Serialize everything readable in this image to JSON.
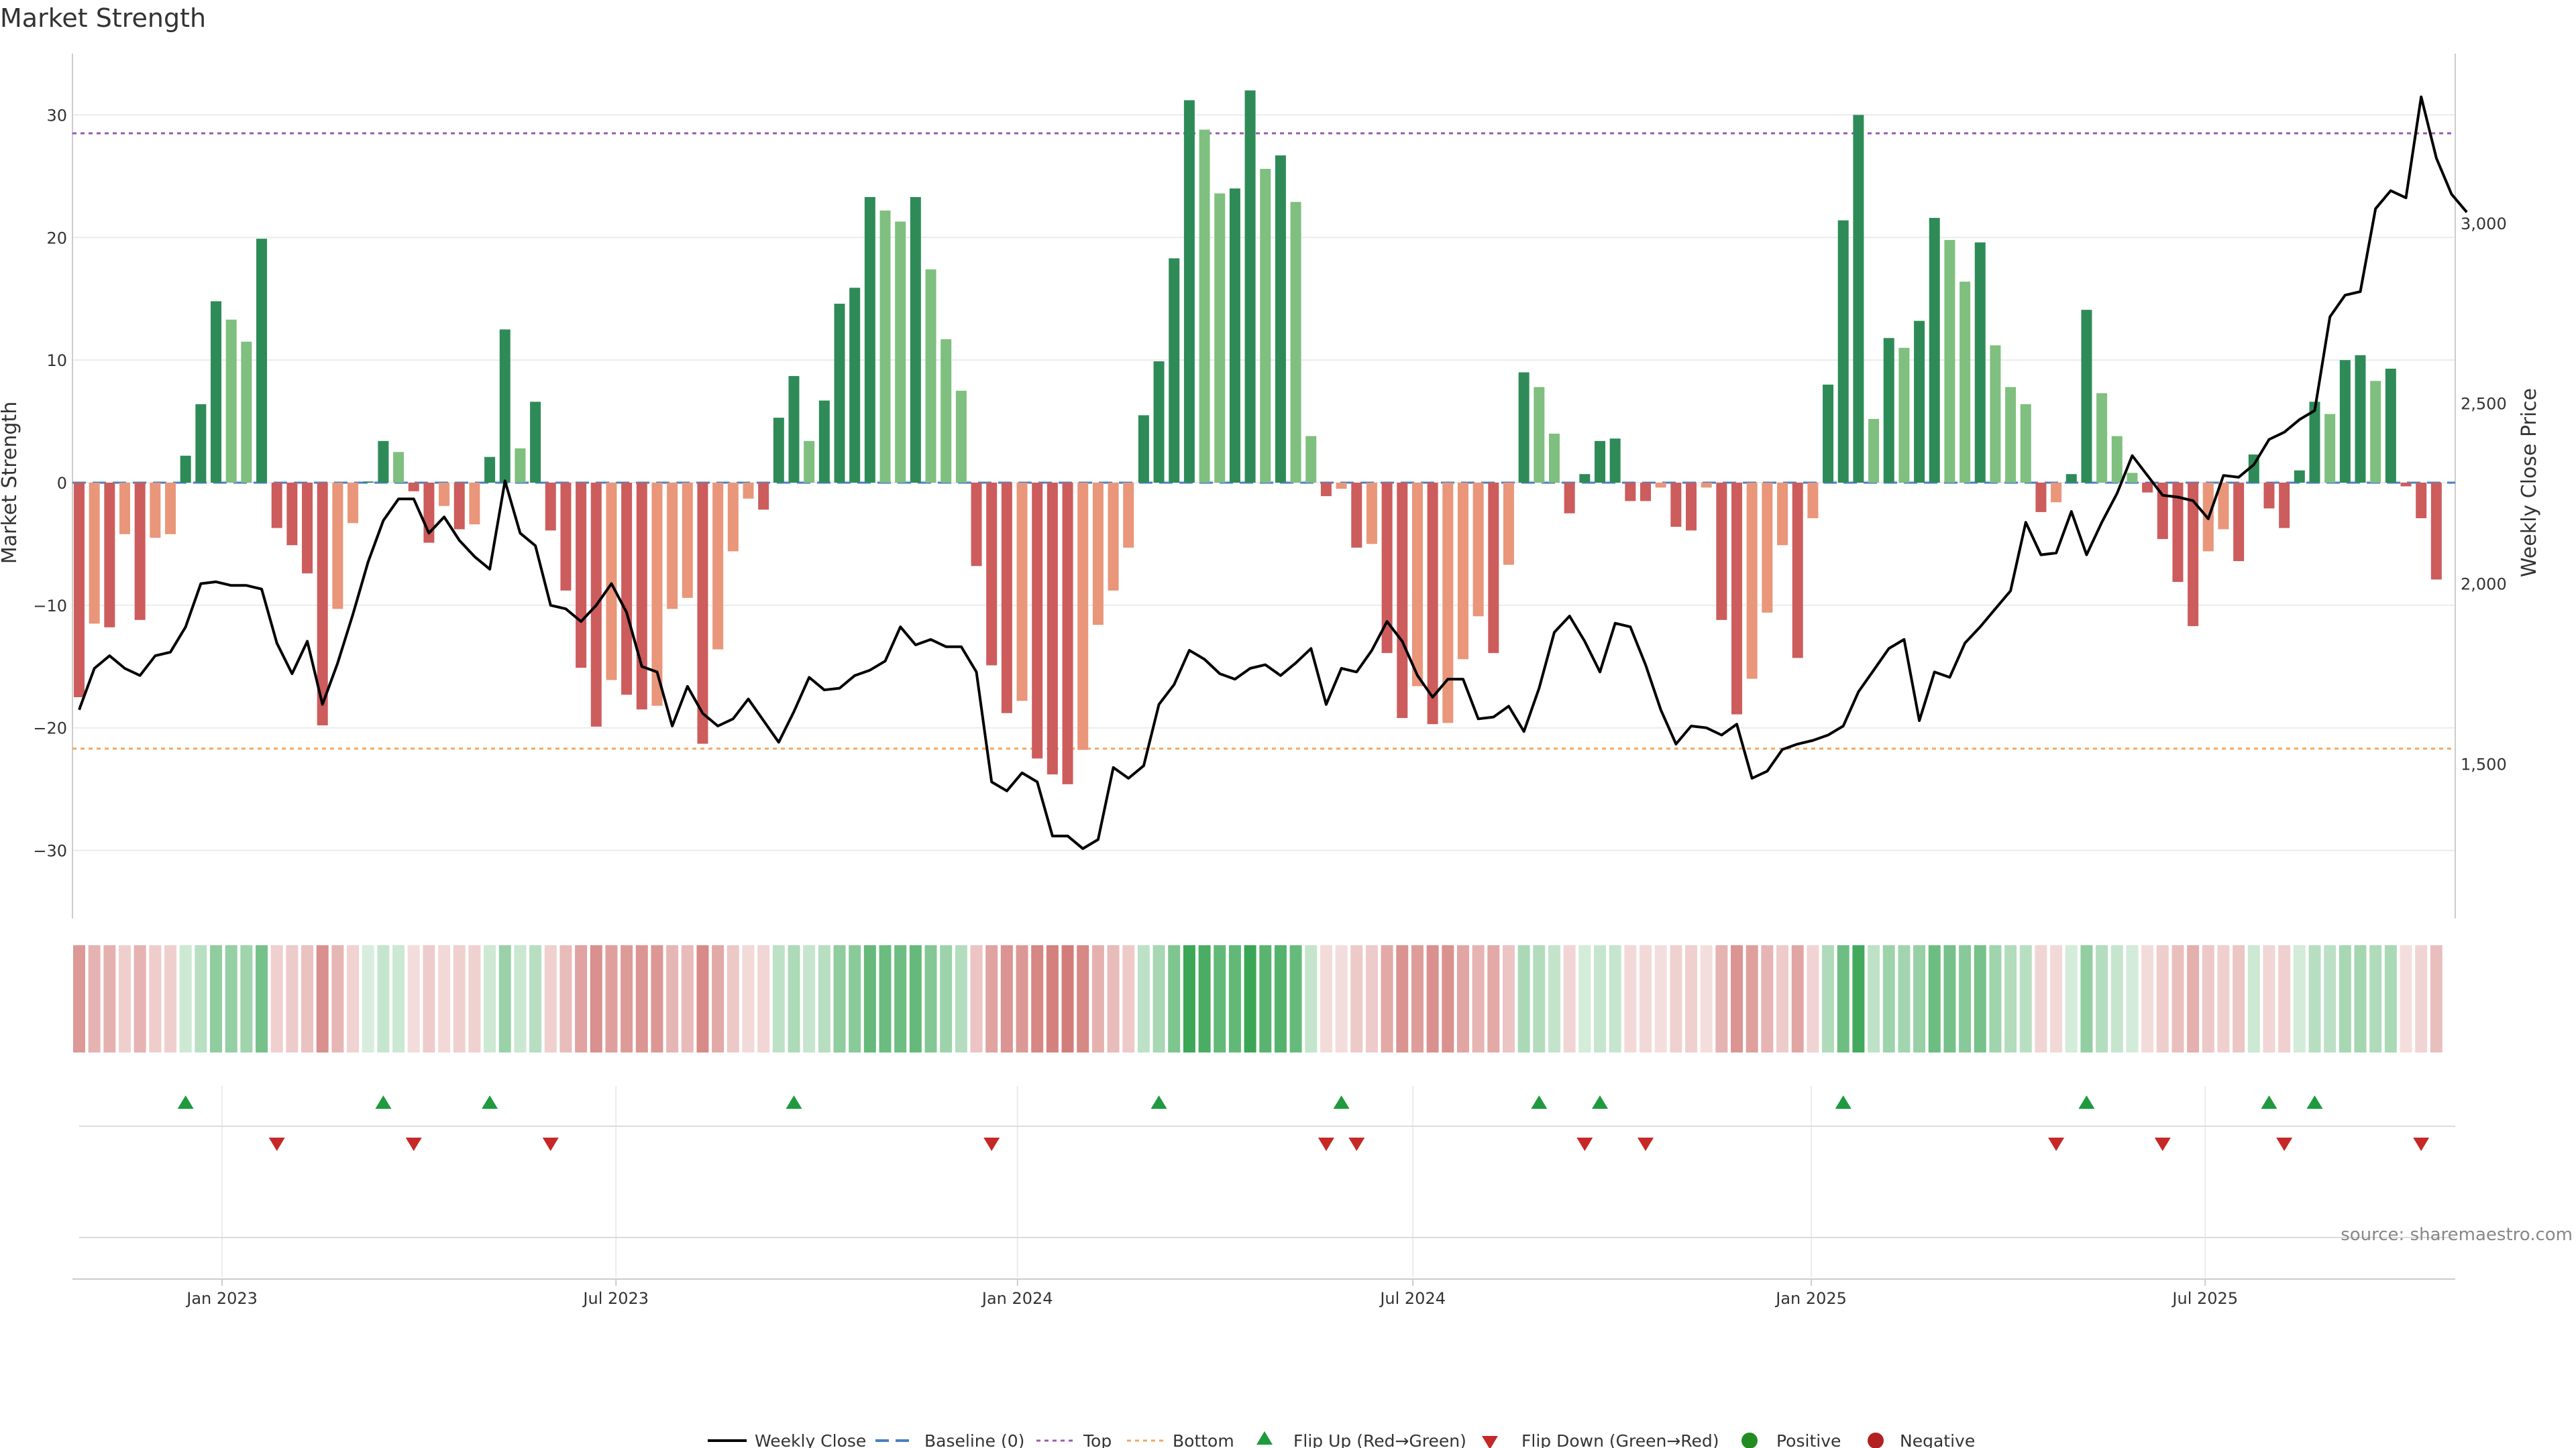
{
  "chart_data": {
    "type": "bar",
    "title": "Market Strength",
    "ylabel_left": "Market Strength",
    "ylabel_right": "Weekly Close Price",
    "source": "source: sharemaestro.com",
    "left_axis": {
      "range": [
        -35,
        35
      ],
      "ticks": [
        30,
        20,
        10,
        0,
        -10,
        -20,
        -30
      ],
      "tick_labels": [
        "30",
        "20",
        "10",
        "0",
        "−10",
        "−20",
        "−30"
      ]
    },
    "right_axis": {
      "range": [
        1090,
        3470
      ],
      "ticks": [
        3000,
        2500,
        2000,
        1500
      ],
      "tick_labels": [
        "3,000",
        "2,500",
        "2,000",
        "1,500"
      ]
    },
    "x_axis": {
      "start_week_offset": 0,
      "labels": [
        {
          "text": "Jan 2023",
          "week": 9.4
        },
        {
          "text": "Jul 2023",
          "week": 35.3
        },
        {
          "text": "Jan 2024",
          "week": 61.7
        },
        {
          "text": "Jul 2024",
          "week": 87.7
        },
        {
          "text": "Jan 2025",
          "week": 113.9
        },
        {
          "text": "Jul 2025",
          "week": 139.8
        }
      ]
    },
    "reference_lines": {
      "baseline": 0,
      "top": 28.5,
      "bottom": -21.7
    },
    "strength": [
      -17.5,
      -11.5,
      -11.8,
      -4.2,
      -11.2,
      -4.5,
      -4.2,
      2.2,
      6.4,
      14.8,
      13.3,
      11.5,
      19.9,
      -3.7,
      -5.1,
      -7.4,
      -19.8,
      -10.3,
      -3.3,
      0.1,
      3.4,
      2.5,
      -0.7,
      -4.9,
      -1.9,
      -3.8,
      -3.4,
      2.1,
      12.5,
      2.8,
      6.6,
      -3.9,
      -8.8,
      -15.1,
      -19.9,
      -16.1,
      -17.3,
      -18.5,
      -18.2,
      -10.3,
      -9.4,
      -21.3,
      -13.6,
      -5.6,
      -1.3,
      -2.2,
      5.3,
      8.7,
      3.4,
      6.7,
      14.6,
      15.9,
      23.3,
      22.2,
      21.3,
      23.3,
      17.4,
      11.7,
      7.5,
      -6.8,
      -14.9,
      -18.8,
      -17.8,
      -22.5,
      -23.8,
      -24.6,
      -21.8,
      -11.6,
      -8.8,
      -5.3,
      5.5,
      9.9,
      18.3,
      31.2,
      28.8,
      23.6,
      24.0,
      32.0,
      25.6,
      26.7,
      22.9,
      3.8,
      -1.1,
      -0.5,
      -5.3,
      -5.0,
      -13.9,
      -19.2,
      -16.6,
      -19.7,
      -19.6,
      -14.4,
      -10.9,
      -13.9,
      -6.7,
      9.0,
      7.8,
      4.0,
      -2.5,
      0.7,
      3.4,
      3.6,
      -1.5,
      -1.5,
      -0.4,
      -3.6,
      -3.9,
      -0.4,
      -11.2,
      -18.9,
      -16.0,
      -10.6,
      -5.1,
      -14.3,
      -2.9,
      8.0,
      21.4,
      30.0,
      5.2,
      11.8,
      11.0,
      13.2,
      21.6,
      19.8,
      16.4,
      19.6,
      11.2,
      7.8,
      6.4,
      -2.4,
      -1.6,
      0.7,
      14.1,
      7.3,
      3.8,
      0.8,
      -0.8,
      -4.6,
      -8.1,
      -11.7,
      -5.6,
      -3.8,
      -6.4,
      2.3,
      -2.1,
      -3.7,
      1.0,
      6.6,
      5.6,
      10.0,
      10.4,
      8.3,
      9.3,
      -0.3,
      -2.9,
      -7.9
    ],
    "weekly_close": [
      1650,
      1765,
      1800,
      1765,
      1745,
      1800,
      1810,
      1880,
      2000,
      2005,
      1995,
      1995,
      1985,
      1835,
      1750,
      1840,
      1665,
      1780,
      1915,
      2060,
      2175,
      2235,
      2235,
      2140,
      2185,
      2120,
      2075,
      2040,
      2285,
      2140,
      2105,
      1940,
      1930,
      1895,
      1940,
      2000,
      1920,
      1770,
      1755,
      1605,
      1715,
      1640,
      1605,
      1625,
      1680,
      1620,
      1560,
      1645,
      1740,
      1705,
      1710,
      1745,
      1760,
      1785,
      1880,
      1830,
      1845,
      1825,
      1825,
      1755,
      1450,
      1425,
      1475,
      1450,
      1300,
      1300,
      1265,
      1290,
      1490,
      1460,
      1495,
      1665,
      1720,
      1815,
      1790,
      1750,
      1735,
      1765,
      1775,
      1745,
      1780,
      1820,
      1665,
      1765,
      1755,
      1815,
      1895,
      1840,
      1745,
      1685,
      1735,
      1735,
      1625,
      1630,
      1660,
      1590,
      1710,
      1865,
      1910,
      1840,
      1755,
      1890,
      1880,
      1775,
      1650,
      1555,
      1605,
      1600,
      1580,
      1610,
      1460,
      1480,
      1540,
      1555,
      1565,
      1580,
      1605,
      1700,
      1760,
      1820,
      1845,
      1620,
      1755,
      1740,
      1835,
      1880,
      1930,
      1980,
      2170,
      2080,
      2085,
      2200,
      2080,
      2170,
      2250,
      2355,
      2300,
      2245,
      2240,
      2230,
      2180,
      2300,
      2295,
      2330,
      2400,
      2420,
      2455,
      2480,
      2740,
      2800,
      2810,
      3040,
      3090,
      3070,
      3350,
      3180,
      3080,
      3030
    ],
    "heat_strip": {
      "levels": [
        -0.55,
        -0.35,
        -0.36,
        -0.13,
        -0.35,
        -0.14,
        -0.13,
        0.07,
        0.2,
        0.46,
        0.42,
        0.36,
        0.62,
        -0.12,
        -0.16,
        -0.23,
        -0.62,
        -0.32,
        -0.1,
        0.0,
        0.11,
        0.08,
        -0.02,
        -0.15,
        -0.06,
        -0.12,
        -0.11,
        0.07,
        0.39,
        0.09,
        0.21,
        -0.12,
        -0.28,
        -0.47,
        -0.62,
        -0.5,
        -0.54,
        -0.58,
        -0.57,
        -0.32,
        -0.29,
        -0.67,
        -0.43,
        -0.18,
        -0.04,
        -0.07,
        0.17,
        0.27,
        0.11,
        0.21,
        0.46,
        0.5,
        0.73,
        0.69,
        0.67,
        0.73,
        0.54,
        0.37,
        0.23,
        -0.21,
        -0.47,
        -0.59,
        -0.56,
        -0.7,
        -0.74,
        -0.77,
        -0.68,
        -0.36,
        -0.28,
        -0.17,
        0.17,
        0.31,
        0.57,
        0.98,
        0.9,
        0.74,
        0.75,
        1.0,
        0.8,
        0.83,
        0.72,
        0.12,
        -0.03,
        -0.02,
        -0.17,
        -0.16,
        -0.43,
        -0.6,
        -0.52,
        -0.62,
        -0.61,
        -0.45,
        -0.34,
        -0.43,
        -0.21,
        0.28,
        0.24,
        0.13,
        -0.08,
        0.02,
        0.11,
        0.11,
        -0.05,
        -0.05,
        -0.01,
        -0.11,
        -0.12,
        -0.01,
        -0.35,
        -0.59,
        -0.5,
        -0.33,
        -0.16,
        -0.45,
        -0.09,
        0.25,
        0.67,
        0.94,
        0.16,
        0.37,
        0.34,
        0.41,
        0.68,
        0.62,
        0.51,
        0.61,
        0.35,
        0.24,
        0.2,
        -0.08,
        -0.05,
        0.02,
        0.44,
        0.23,
        0.12,
        0.03,
        -0.03,
        -0.14,
        -0.25,
        -0.37,
        -0.18,
        -0.12,
        -0.2,
        0.07,
        -0.07,
        -0.12,
        0.03,
        0.21,
        0.18,
        0.31,
        0.33,
        0.26,
        0.29,
        -0.01,
        -0.09,
        -0.25
      ]
    },
    "flip_up_weeks": [
      7,
      20,
      27,
      47,
      71,
      83,
      96,
      100,
      116,
      132,
      144,
      147
    ],
    "flip_down_weeks": [
      13,
      22,
      31,
      60,
      82,
      84,
      99,
      103,
      130,
      137,
      145,
      154
    ],
    "legend": [
      "Weekly Close",
      "Baseline (0)",
      "Top",
      "Bottom",
      "Flip Up (Red→Green)",
      "Flip Down (Green→Red)",
      "Positive",
      "Negative"
    ],
    "legend_position": "bottom-center",
    "colors": {
      "pos_dark": "#2e8b57",
      "pos_light": "#7fbf7f",
      "neg_dark": "#cd5c5c",
      "neg_light": "#e9967a",
      "line": "#000000",
      "baseline": "#4a7fc1",
      "top": "#9b59b6",
      "bottom": "#f0a868",
      "flip_up": "#1f9a3f",
      "flip_down": "#c62828",
      "positive": "#228b22",
      "negative": "#b22222",
      "grid": "#ebebeb",
      "axis": "#cccccc"
    }
  }
}
